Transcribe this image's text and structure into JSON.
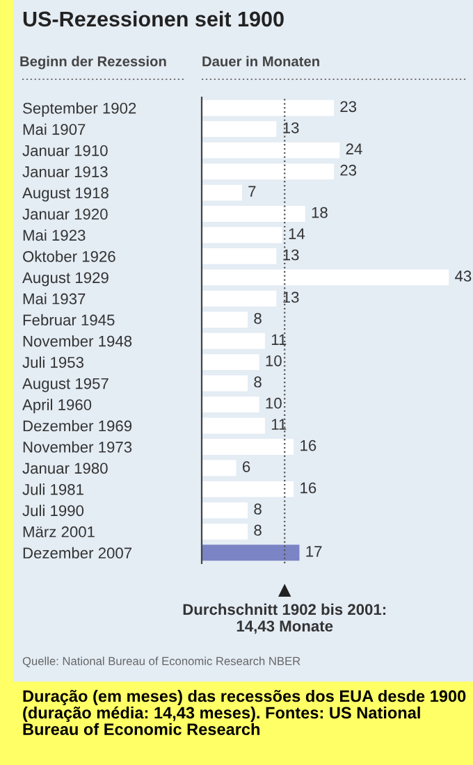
{
  "chart_data": {
    "type": "bar",
    "orientation": "horizontal",
    "title": "US-Rezessionen seit 1900",
    "ylabel": "Beginn der Rezession",
    "xlabel": "Dauer in Monaten",
    "categories": [
      "September 1902",
      "Mai 1907",
      "Januar 1910",
      "Januar 1913",
      "August 1918",
      "Januar 1920",
      "Mai 1923",
      "Oktober 1926",
      "August 1929",
      "Mai 1937",
      "Februar 1945",
      "November 1948",
      "Juli 1953",
      "August 1957",
      "April 1960",
      "Dezember 1969",
      "November 1973",
      "Januar 1980",
      "Juli 1981",
      "Juli 1990",
      "März 2001",
      "Dezember 2007"
    ],
    "values": [
      23,
      13,
      24,
      23,
      7,
      18,
      14,
      13,
      43,
      13,
      8,
      11,
      10,
      8,
      10,
      11,
      16,
      6,
      16,
      8,
      8,
      17
    ],
    "colors": [
      "#ffffff",
      "#ffffff",
      "#ffffff",
      "#ffffff",
      "#ffffff",
      "#ffffff",
      "#ffffff",
      "#ffffff",
      "#ffffff",
      "#ffffff",
      "#ffffff",
      "#ffffff",
      "#ffffff",
      "#ffffff",
      "#ffffff",
      "#ffffff",
      "#ffffff",
      "#ffffff",
      "#ffffff",
      "#ffffff",
      "#ffffff",
      "#7b84c4"
    ],
    "xlim": [
      0,
      46
    ],
    "data_labels": true,
    "grid": false,
    "legend": false,
    "tick_labels": "y",
    "ref_lines": [
      {
        "axis": "x",
        "value": 14.43,
        "label": "Durchschnitt 1902 bis 2001:\n14,43 Monate",
        "line_style": "dotted",
        "color": "#555555"
      }
    ],
    "annotations": [
      "Quelle: National Bureau of Economic Research NBER",
      "Duração (em meses) das recessões dos EUA desde 1900 (duração média: 14,43 meses). Fontes: US National Bureau of Economic Research"
    ]
  }
}
